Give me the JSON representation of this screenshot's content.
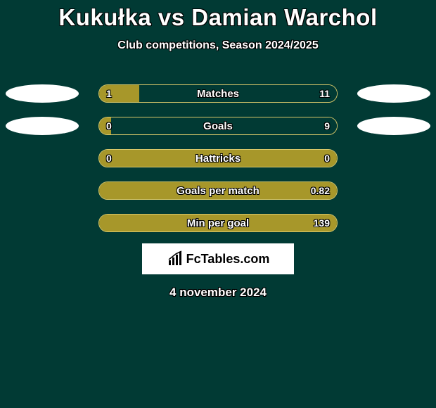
{
  "background_color": "#013a34",
  "text_color": "#ffffff",
  "text_outline_color": "#000000",
  "bar_fill_color": "#a7972a",
  "bar_empty_color": "#013a34",
  "bar_border_color": "#d9c86a",
  "avatar_color": "#ffffff",
  "title": "Kukułka vs Damian Warchol",
  "subtitle": "Club competitions, Season 2024/2025",
  "date": "4 november 2024",
  "logo": {
    "text": "FcTables.com",
    "icon_name": "chart-icon",
    "box_bg": "#ffffff",
    "text_color": "#000000"
  },
  "player_left": {
    "name": "Kukułka"
  },
  "player_right": {
    "name": "Damian Warchol"
  },
  "stats": [
    {
      "label": "Matches",
      "left_val": "1",
      "right_val": "11",
      "left_pct": 17,
      "show_avatars": true
    },
    {
      "label": "Goals",
      "left_val": "0",
      "right_val": "9",
      "left_pct": 5,
      "show_avatars": true
    },
    {
      "label": "Hattricks",
      "left_val": "0",
      "right_val": "0",
      "left_pct": 100,
      "show_avatars": false
    },
    {
      "label": "Goals per match",
      "left_val": "",
      "right_val": "0.82",
      "left_pct": 100,
      "show_avatars": false
    },
    {
      "label": "Min per goal",
      "left_val": "",
      "right_val": "139",
      "left_pct": 100,
      "show_avatars": false
    }
  ]
}
